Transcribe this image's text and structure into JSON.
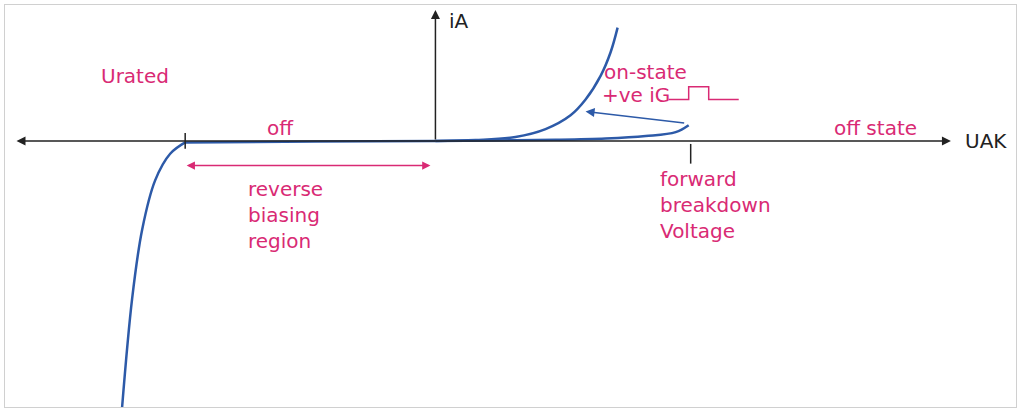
{
  "chart_data": {
    "type": "line",
    "x_label": "UAK",
    "y_label": "iA",
    "xlim": [
      -43,
      58
    ],
    "ylim": [
      -27,
      13.8
    ],
    "xticks": [],
    "yticks": [],
    "tick_labels": false,
    "grid": false,
    "series": [
      {
        "color": "#2d5aa8",
        "x": [
          -25,
          -12,
          0
        ],
        "values": [
          -0.15,
          -0.05,
          0
        ]
      },
      {
        "color": "#2d5aa8",
        "x": [
          -25,
          -26.5,
          -28,
          -29.3,
          -30.3,
          -31.3
        ],
        "values": [
          -0.15,
          -1.3,
          -4,
          -9,
          -16,
          -27
        ]
      },
      {
        "color": "#2d5aa8",
        "x": [
          0,
          6,
          12,
          17,
          21,
          24,
          25.3
        ],
        "values": [
          0,
          0.05,
          0.12,
          0.25,
          0.5,
          0.9,
          1.6
        ]
      },
      {
        "color": "#2d5aa8",
        "x": [
          0,
          4,
          8,
          11,
          13.5,
          15,
          16.5,
          17.5,
          18.2
        ],
        "values": [
          0,
          0.1,
          0.4,
          1.2,
          2.6,
          4.2,
          6.6,
          9,
          11.5
        ]
      }
    ],
    "x_marks": [
      {
        "label": "Urated",
        "value": -25
      },
      {
        "label": "forward breakdown Voltage",
        "value": 25.5
      }
    ],
    "annotations": [
      {
        "text": "off",
        "x": -15.5,
        "y": 1.3
      },
      {
        "text": "reverse biasing region",
        "x": -15,
        "y": -7.5,
        "span": [
          -25,
          -0.5
        ]
      },
      {
        "text": "on-state",
        "x": 21,
        "y": 7
      },
      {
        "text": "+ve iG",
        "x": 20,
        "y": 4.7,
        "marker": "pulse"
      },
      {
        "text": "off state",
        "x": 44,
        "y": 1.3
      }
    ]
  }
}
